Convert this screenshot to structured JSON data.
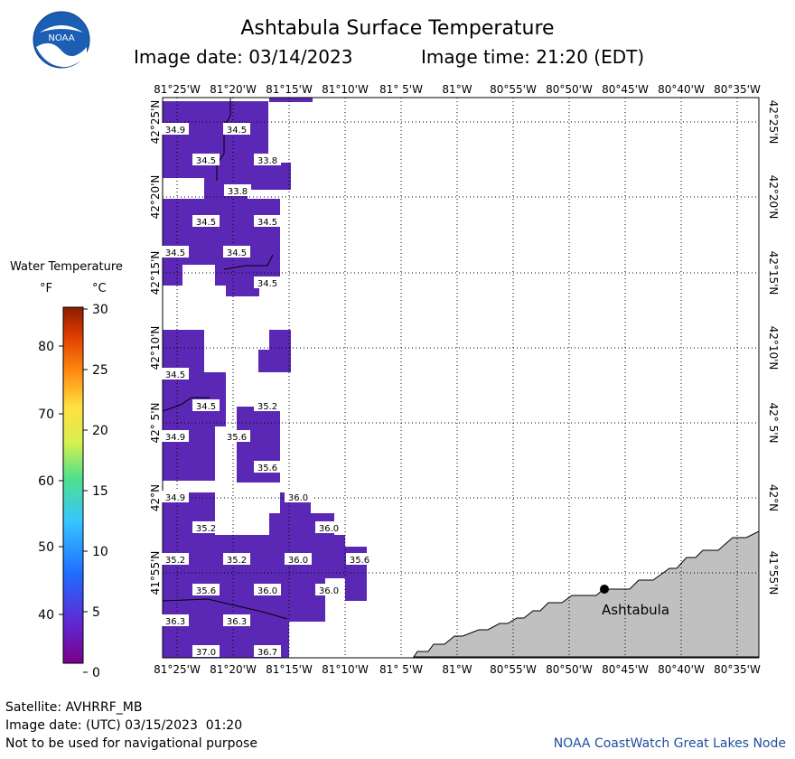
{
  "header": {
    "title": "Ashtabula Surface Temperature",
    "image_date": "Image date: 03/14/2023",
    "image_time": "Image time: 21:20 (EDT)"
  },
  "logo": {
    "text": "NOAA"
  },
  "legend": {
    "title": "Water Temperature",
    "unit_f": "°F",
    "unit_c": "°C",
    "f_ticks": [
      "40",
      "50",
      "60",
      "70",
      "80"
    ],
    "c_ticks": [
      "0",
      "5",
      "10",
      "15",
      "20",
      "25",
      "30"
    ]
  },
  "map": {
    "lon_labels": [
      "81°25'W",
      "81°20'W",
      "81°15'W",
      "81°10'W",
      "81° 5'W",
      "81°W",
      "80°55'W",
      "80°50'W",
      "80°45'W",
      "80°40'W",
      "80°35'W"
    ],
    "lat_labels": [
      "42°25'N",
      "42°20'N",
      "42°15'N",
      "42°10'N",
      "42° 5'N",
      "42°N",
      "41°55'N"
    ],
    "city": "Ashtabula",
    "temps": [
      {
        "v": "34.9"
      },
      {
        "v": "34.5"
      },
      {
        "v": "34.5"
      },
      {
        "v": "33.8"
      },
      {
        "v": "33.8"
      },
      {
        "v": "34.5"
      },
      {
        "v": "34.5"
      },
      {
        "v": "34.5"
      },
      {
        "v": "34.5"
      },
      {
        "v": "34.5"
      },
      {
        "v": "34.5"
      },
      {
        "v": "34.5"
      },
      {
        "v": "35.2"
      },
      {
        "v": "34.9"
      },
      {
        "v": "35.6"
      },
      {
        "v": "35.6"
      },
      {
        "v": "34.9"
      },
      {
        "v": "36.0"
      },
      {
        "v": "35.2"
      },
      {
        "v": "36.0"
      },
      {
        "v": "35.2"
      },
      {
        "v": "35.2"
      },
      {
        "v": "36.0"
      },
      {
        "v": "35.6"
      },
      {
        "v": "35.6"
      },
      {
        "v": "36.0"
      },
      {
        "v": "36.0"
      },
      {
        "v": "36.3"
      },
      {
        "v": "36.3"
      },
      {
        "v": "37.0"
      },
      {
        "v": "36.7"
      }
    ]
  },
  "footer": {
    "satellite": "Satellite: AVHRRF_MB",
    "utc_date": "Image date: (UTC) 03/15/2023  01:20",
    "disclaimer": "Not to be used for navigational purpose",
    "credit": "NOAA CoastWatch Great Lakes Node"
  }
}
